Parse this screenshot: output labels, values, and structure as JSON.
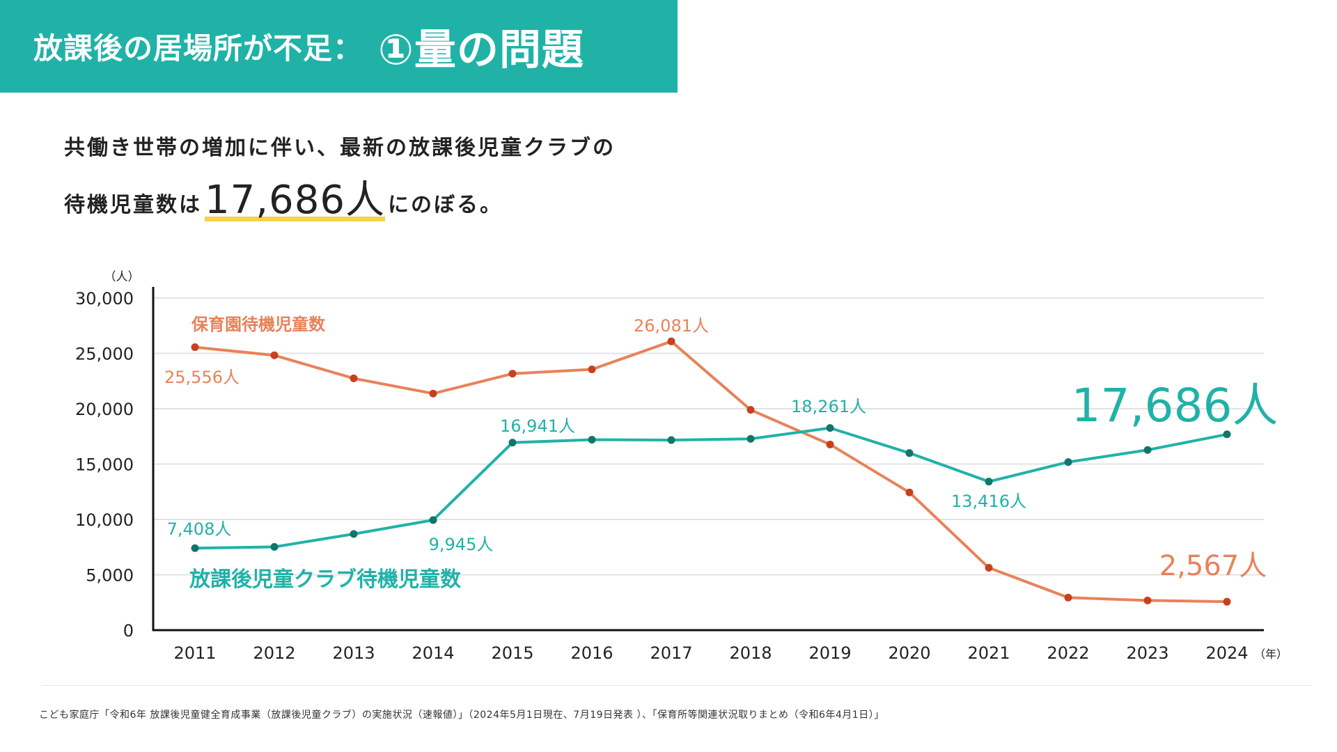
{
  "header": {
    "title_main": "放課後の居場所が不足：",
    "title_emph": "①量の問題"
  },
  "lead": {
    "line1": "共働き世帯の増加に伴い、最新の放課後児童クラブの",
    "line2_pre": "待機児童数は",
    "line2_big": "17,686人",
    "line2_post": "にのぼる。"
  },
  "chart_data": {
    "type": "line",
    "ylabel": "（人）",
    "xunit": "（年）",
    "x": [
      "2011",
      "2012",
      "2013",
      "2014",
      "2015",
      "2016",
      "2017",
      "2018",
      "2019",
      "2020",
      "2021",
      "2022",
      "2023",
      "2024"
    ],
    "ylim": [
      0,
      30000
    ],
    "yticks": [
      0,
      5000,
      10000,
      15000,
      20000,
      25000,
      30000
    ],
    "ytick_labels": [
      "0",
      "5,000",
      "10,000",
      "15,000",
      "20,000",
      "25,000",
      "30,000"
    ],
    "grid": true,
    "series": [
      {
        "name": "保育園待機児童数",
        "color": "#e8825a",
        "dot_color": "#c8401e",
        "values": [
          25556,
          24825,
          22741,
          21371,
          23167,
          23553,
          26081,
          19895,
          16772,
          12439,
          5634,
          2944,
          2680,
          2567
        ]
      },
      {
        "name": "放課後児童クラブ待機児童数",
        "color": "#20b2a7",
        "dot_color": "#12756d",
        "values": [
          7408,
          7521,
          8689,
          9945,
          16941,
          17203,
          17170,
          17279,
          18261,
          15995,
          13416,
          15180,
          16276,
          17686
        ]
      }
    ],
    "annotations": [
      {
        "series": 0,
        "index": 0,
        "text": "25,556人"
      },
      {
        "series": 0,
        "index": 6,
        "text": "26,081人"
      },
      {
        "series": 0,
        "index": 13,
        "text": "2,567人"
      },
      {
        "series": 1,
        "index": 0,
        "text": "7,408人"
      },
      {
        "series": 1,
        "index": 3,
        "text": "9,945人"
      },
      {
        "series": 1,
        "index": 4,
        "text": "16,941人"
      },
      {
        "series": 1,
        "index": 8,
        "text": "18,261人"
      },
      {
        "series": 1,
        "index": 10,
        "text": "13,416人"
      },
      {
        "series": 1,
        "index": 13,
        "text": "17,686人"
      }
    ]
  },
  "footer": {
    "source": "こども家庭庁「令和6年 放課後児童健全育成事業（放課後児童クラブ）の実施状況（速報値）」（2024年5月1日現在、7月19日発表 ）、「保育所等関連状況取りまとめ（令和6年4月1日）」"
  }
}
